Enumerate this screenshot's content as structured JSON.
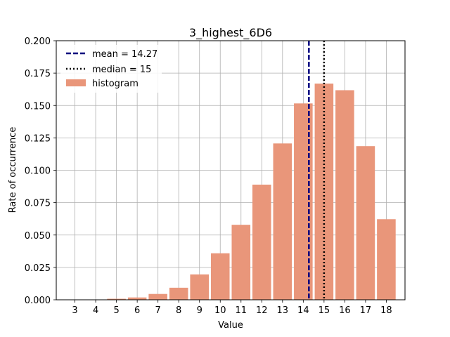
{
  "chart_data": {
    "type": "bar",
    "title": "3_highest_6D6",
    "xlabel": "Value",
    "ylabel": "Rate of occurrence",
    "categories": [
      "3",
      "4",
      "5",
      "6",
      "7",
      "8",
      "9",
      "10",
      "11",
      "12",
      "13",
      "14",
      "15",
      "16",
      "17",
      "18"
    ],
    "values": [
      0.0,
      0.0,
      0.0008,
      0.0018,
      0.0045,
      0.0093,
      0.0196,
      0.0359,
      0.0579,
      0.0889,
      0.1207,
      0.1516,
      0.1669,
      0.1618,
      0.1186,
      0.0622
    ],
    "xlim": [
      2.1,
      18.9
    ],
    "ylim": [
      0,
      0.2
    ],
    "yticks": [
      0.0,
      0.025,
      0.05,
      0.075,
      0.1,
      0.125,
      0.15,
      0.175,
      0.2
    ],
    "ytick_labels": [
      "0.000",
      "0.025",
      "0.050",
      "0.075",
      "0.100",
      "0.125",
      "0.150",
      "0.175",
      "0.200"
    ],
    "grid": true,
    "legend_position": "top-left",
    "mean": 14.27,
    "median": 15,
    "legend": [
      {
        "label": "mean = 14.27",
        "style": "dashed",
        "color": "#00007f"
      },
      {
        "label": "median = 15",
        "style": "dotted",
        "color": "#000000"
      },
      {
        "label": "histogram",
        "style": "patch",
        "color": "#e9967a"
      }
    ],
    "colors": {
      "bar": "#e9967a",
      "mean_line": "#00007f",
      "median_line": "#000000",
      "grid": "#b0b0b0"
    }
  }
}
